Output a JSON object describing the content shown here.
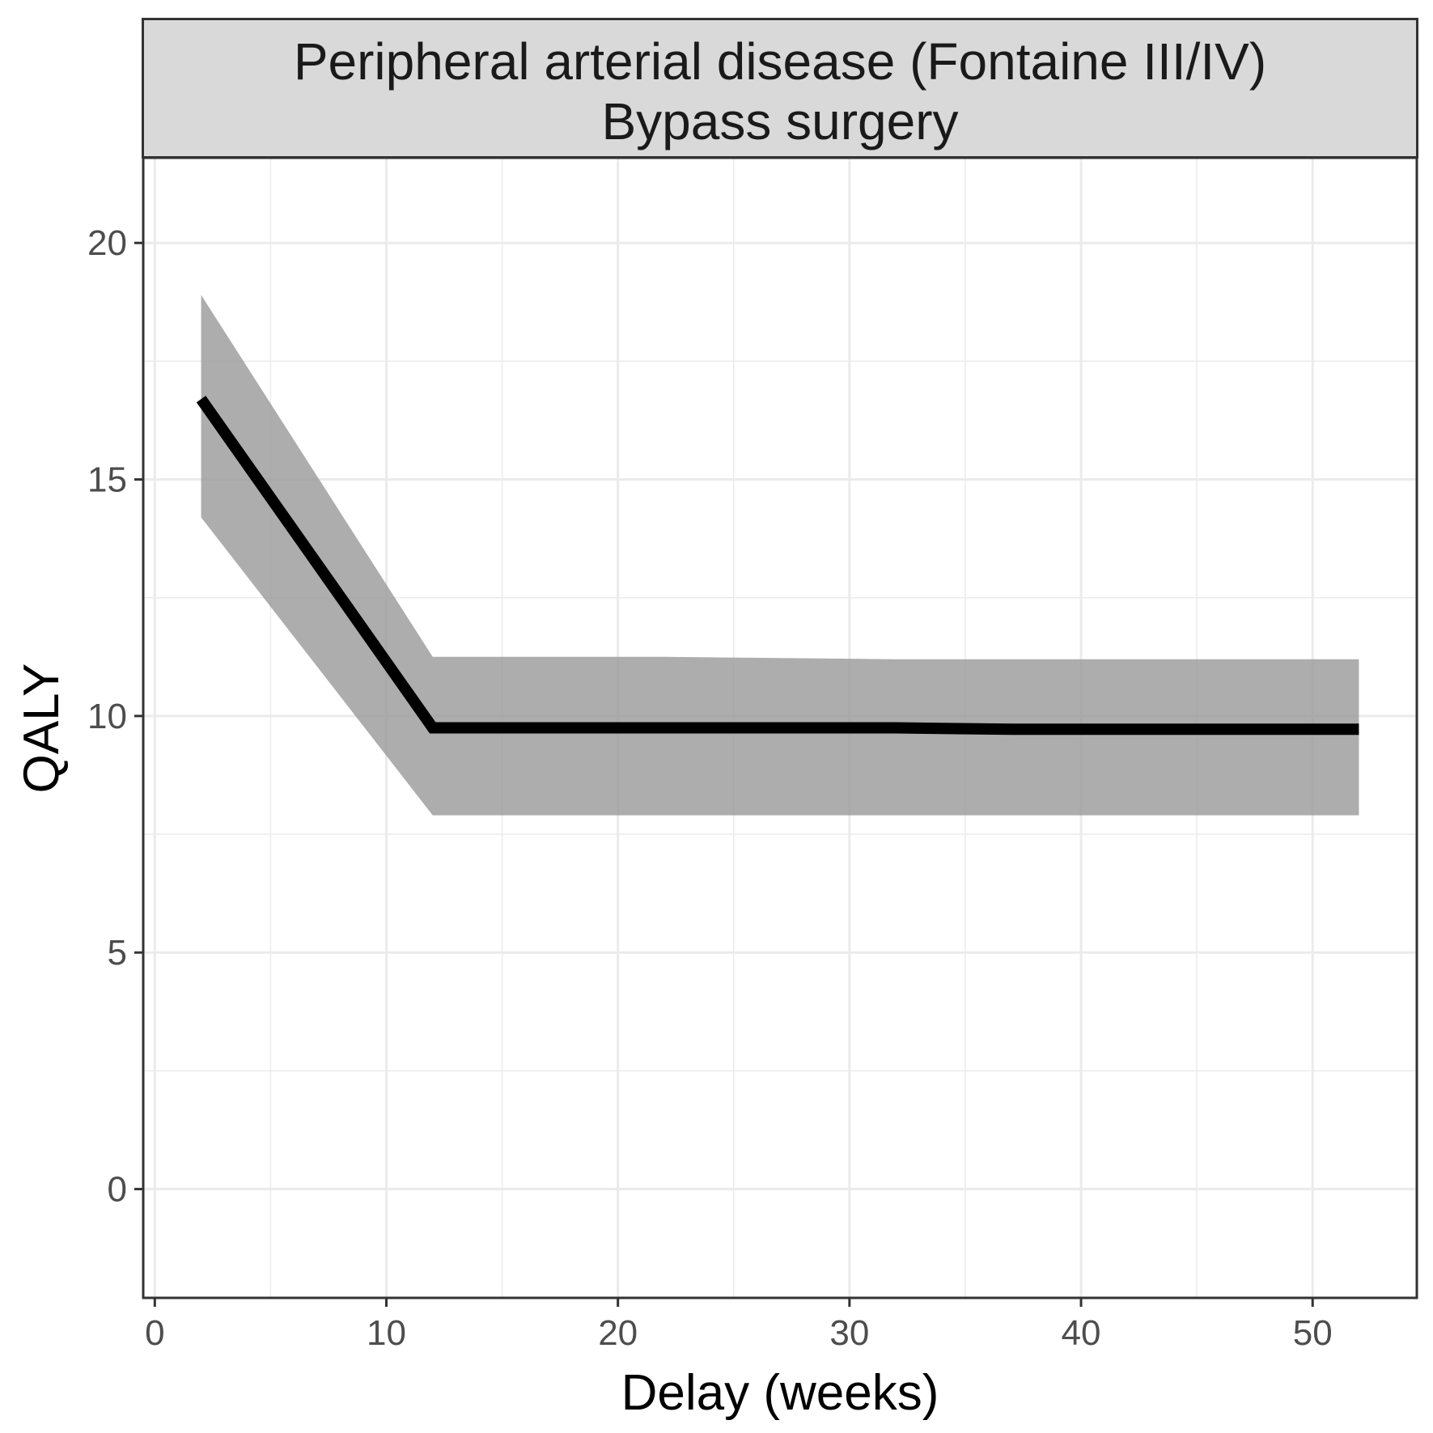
{
  "chart_data": {
    "type": "line",
    "facet_label": {
      "line1": "Peripheral arterial disease (Fontaine III/IV)",
      "line2": "Bypass surgery"
    },
    "xlabel": "Delay (weeks)",
    "ylabel": "QALY",
    "xlim": [
      -0.5,
      54.5
    ],
    "ylim": [
      -2.3,
      21.8
    ],
    "x_ticks": [
      0,
      10,
      20,
      30,
      40,
      50
    ],
    "y_ticks": [
      0,
      5,
      10,
      15,
      20
    ],
    "x_tick_labels": [
      "0",
      "10",
      "20",
      "30",
      "40",
      "50"
    ],
    "y_tick_labels": [
      "0",
      "5",
      "10",
      "15",
      "20"
    ],
    "grid": true,
    "series": [
      {
        "x": [
          2,
          12,
          22,
          32,
          37,
          42,
          52
        ],
        "y": [
          16.7,
          9.75,
          9.75,
          9.75,
          9.72,
          9.72,
          9.72
        ],
        "lower": [
          14.2,
          7.9,
          7.9,
          7.9,
          7.9,
          7.9,
          7.9
        ],
        "upper": [
          18.9,
          11.25,
          11.25,
          11.2,
          11.2,
          11.2,
          11.2
        ]
      }
    ],
    "colors": {
      "line": "#000000",
      "ribbon": "#999999",
      "strip_fill": "#d9d9d9",
      "grid": "#ebebeb",
      "border": "#333333"
    }
  }
}
